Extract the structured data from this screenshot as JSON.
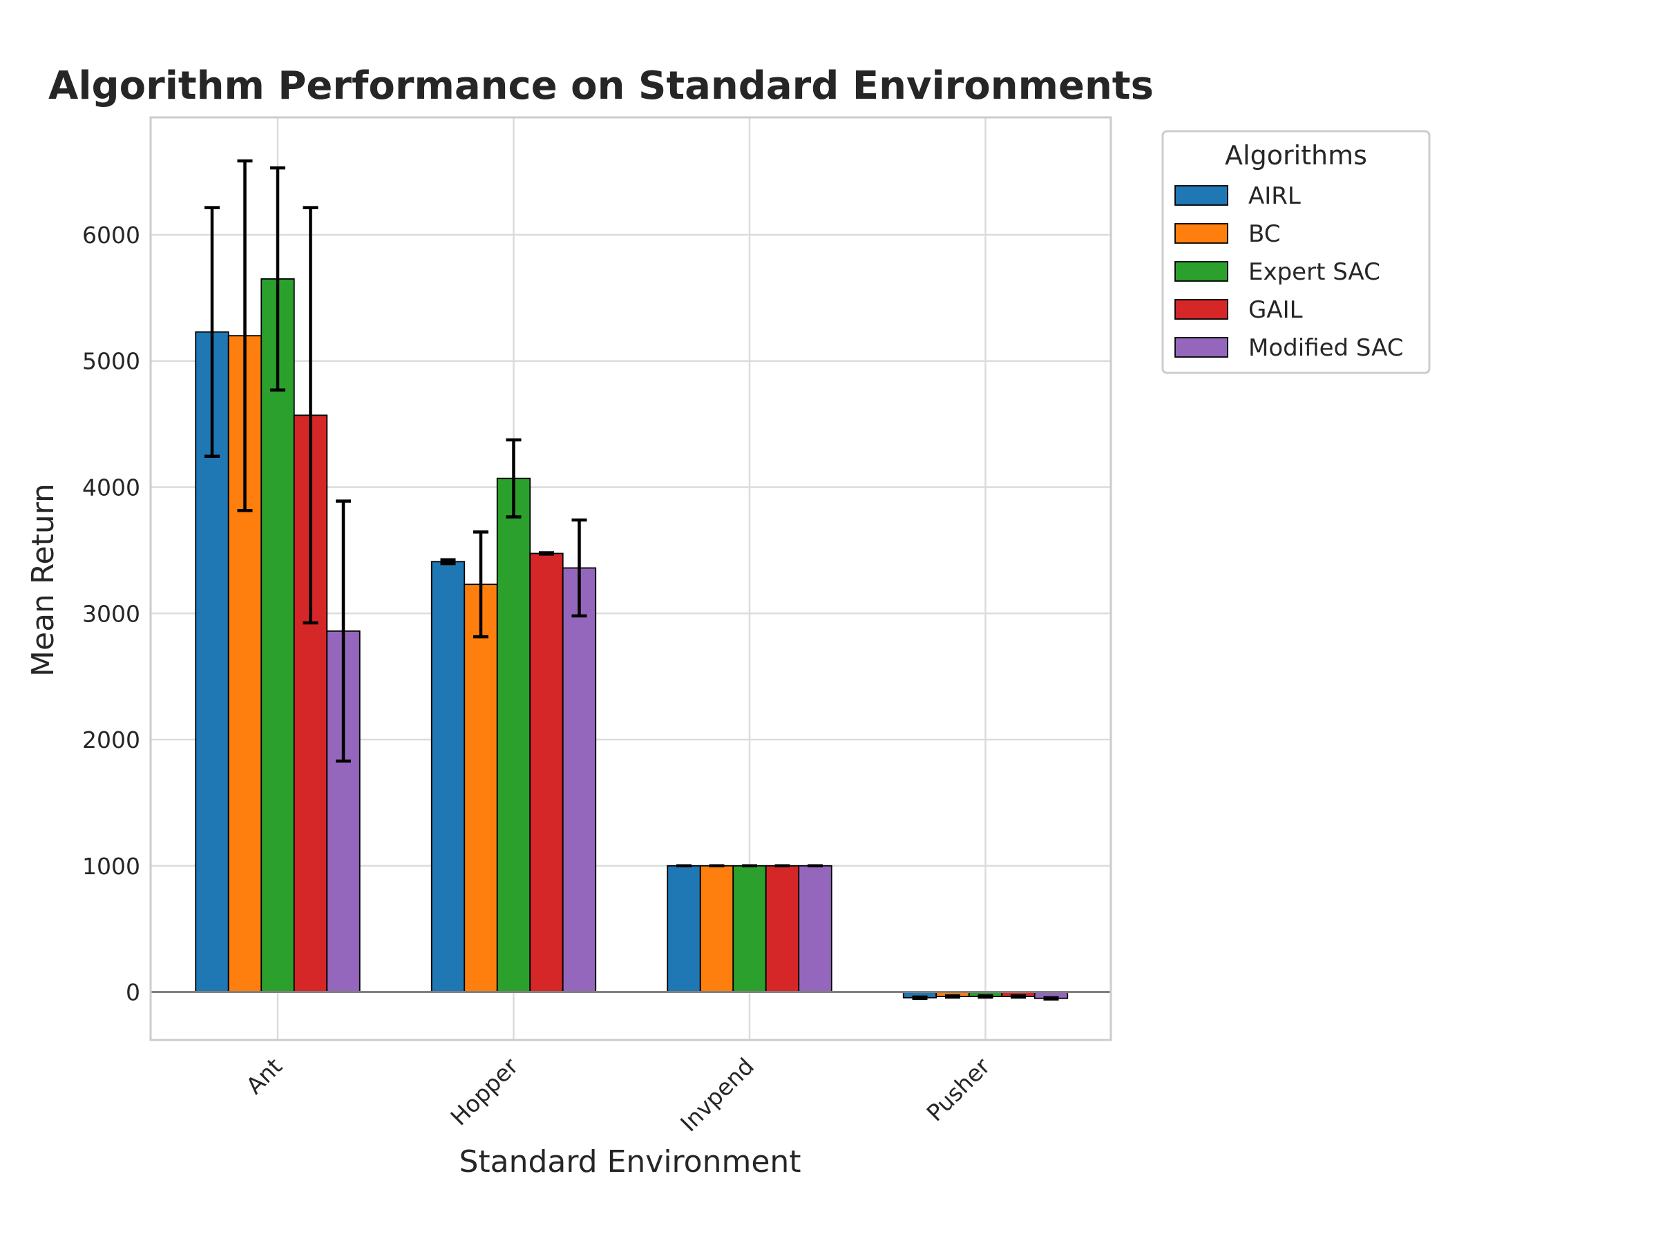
{
  "chart_data": {
    "type": "bar",
    "title": "Algorithm Performance on Standard Environments",
    "xlabel": "Standard Environment",
    "ylabel": "Mean Return",
    "categories": [
      "Ant",
      "Hopper",
      "Invpend",
      "Pusher"
    ],
    "series": [
      {
        "name": "AIRL",
        "color": "#1f77b4",
        "values": [
          5230,
          3410,
          1000,
          -45
        ],
        "errors": [
          985,
          15,
          0,
          5
        ]
      },
      {
        "name": "BC",
        "color": "#ff7f0e",
        "values": [
          5200,
          3230,
          1000,
          -35
        ],
        "errors": [
          1385,
          415,
          0,
          5
        ]
      },
      {
        "name": "Expert SAC",
        "color": "#2ca02c",
        "values": [
          5650,
          4070,
          1000,
          -35
        ],
        "errors": [
          880,
          305,
          0,
          5
        ]
      },
      {
        "name": "GAIL",
        "color": "#d62728",
        "values": [
          4570,
          3475,
          1000,
          -35
        ],
        "errors": [
          1645,
          5,
          0,
          5
        ]
      },
      {
        "name": "Modified SAC",
        "color": "#9467bd",
        "values": [
          2860,
          3360,
          1000,
          -50
        ],
        "errors": [
          1030,
          380,
          0,
          5
        ]
      }
    ],
    "yticks": [
      "0",
      "1000",
      "2000",
      "3000",
      "4000",
      "5000",
      "6000"
    ],
    "ylim": [
      -380,
      6930
    ],
    "grid": true,
    "error_bars": true,
    "legend": {
      "title": "Algorithms",
      "placement": "outside upper right"
    }
  }
}
